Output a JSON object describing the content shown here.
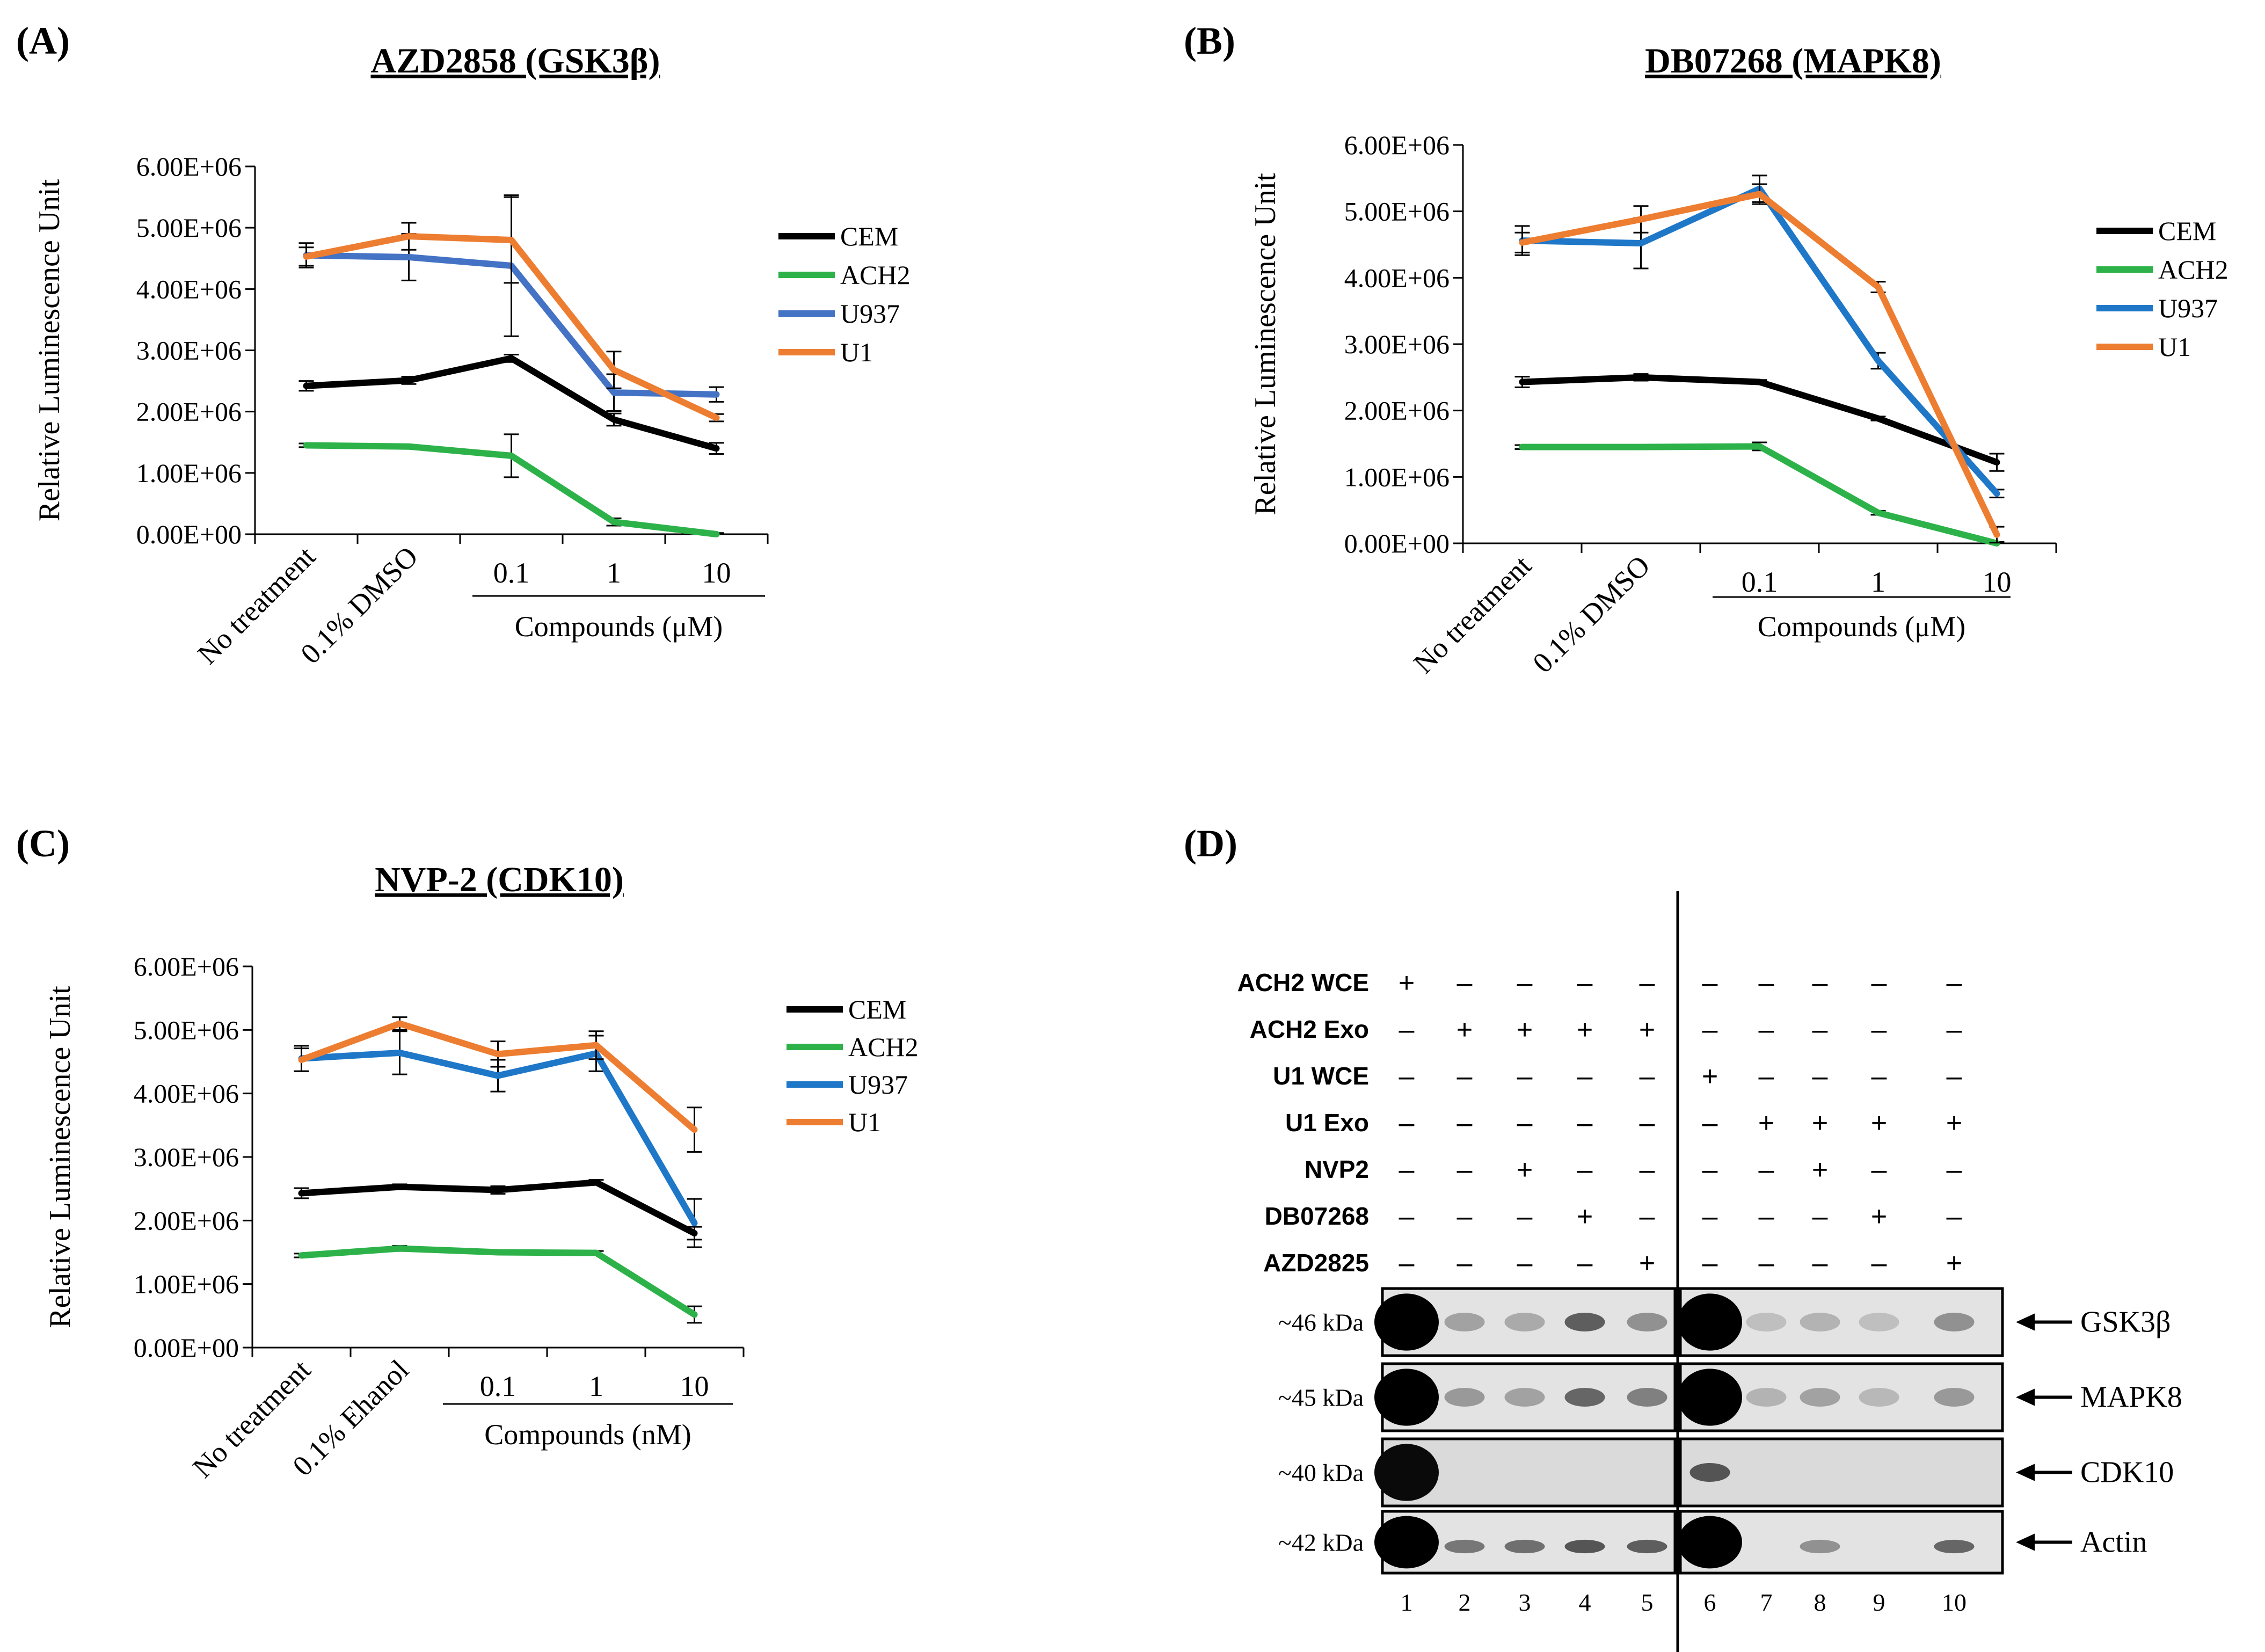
{
  "panels": {
    "A": {
      "label": "(A)",
      "title": "AZD2858 (GSK3β)"
    },
    "B": {
      "label": "(B)",
      "title": "DB07268 (MAPK8)"
    },
    "C": {
      "label": "(C)",
      "title": "NVP-2 (CDK10)"
    },
    "D": {
      "label": "(D)"
    }
  },
  "chart_data": [
    {
      "id": "A",
      "type": "line",
      "title": "AZD2858 (GSK3β)",
      "ylabel": "Relative Luminescence Unit",
      "xlabel": "Compounds (μM)",
      "categories": [
        "No treatment",
        "0.1% DMSO",
        "0.1",
        "1",
        "10"
      ],
      "ylim": [
        0,
        6000000
      ],
      "yticks": [
        "0.00E+00",
        "1.00E+06",
        "2.00E+06",
        "3.00E+06",
        "4.00E+06",
        "5.00E+06",
        "6.00E+06"
      ],
      "series": [
        {
          "name": "CEM",
          "color": "#000000",
          "values": [
            2420000,
            2510000,
            2870000,
            1870000,
            1400000
          ],
          "errors": [
            80000,
            60000,
            60000,
            100000,
            90000
          ]
        },
        {
          "name": "ACH2",
          "color": "#2db24a",
          "values": [
            1450000,
            1430000,
            1280000,
            200000,
            0
          ],
          "errors": [
            30000,
            20000,
            350000,
            60000,
            20000
          ]
        },
        {
          "name": "U937",
          "color": "#4472c4",
          "values": [
            4550000,
            4520000,
            4380000,
            2310000,
            2280000
          ],
          "errors": [
            200000,
            380000,
            1150000,
            300000,
            120000
          ]
        },
        {
          "name": "U1",
          "color": "#ed7d31",
          "values": [
            4530000,
            4860000,
            4800000,
            2680000,
            1900000
          ],
          "errors": [
            150000,
            220000,
            700000,
            300000,
            60000
          ]
        }
      ]
    },
    {
      "id": "B",
      "type": "line",
      "title": "DB07268 (MAPK8)",
      "ylabel": "Relative Luminescence Unit",
      "xlabel": "Compounds (μM)",
      "categories": [
        "No treatment",
        "0.1% DMSO",
        "0.1",
        "1",
        "10"
      ],
      "ylim": [
        0,
        6000000
      ],
      "yticks": [
        "0.00E+00",
        "1.00E+06",
        "2.00E+06",
        "3.00E+06",
        "4.00E+06",
        "5.00E+06",
        "6.00E+06"
      ],
      "series": [
        {
          "name": "CEM",
          "color": "#000000",
          "values": [
            2430000,
            2500000,
            2430000,
            1880000,
            1220000
          ],
          "errors": [
            80000,
            50000,
            30000,
            30000,
            130000
          ]
        },
        {
          "name": "ACH2",
          "color": "#2db24a",
          "values": [
            1450000,
            1450000,
            1460000,
            460000,
            0
          ],
          "errors": [
            30000,
            20000,
            60000,
            30000,
            20000
          ]
        },
        {
          "name": "U937",
          "color": "#1f77c8",
          "values": [
            4560000,
            4520000,
            5340000,
            2750000,
            750000
          ],
          "errors": [
            220000,
            380000,
            200000,
            120000,
            60000
          ]
        },
        {
          "name": "U1",
          "color": "#ed7d31",
          "values": [
            4530000,
            4880000,
            5260000,
            3860000,
            130000
          ],
          "errors": [
            150000,
            200000,
            150000,
            80000,
            120000
          ]
        }
      ]
    },
    {
      "id": "C",
      "type": "line",
      "title": "NVP-2 (CDK10)",
      "ylabel": "Relative Luminescence Unit",
      "xlabel": "Compounds (nM)",
      "categories": [
        "No treatment",
        "0.1% Ehanol",
        "0.1",
        "1",
        "10"
      ],
      "ylim": [
        0,
        6000000
      ],
      "yticks": [
        "0.00E+00",
        "1.00E+06",
        "2.00E+06",
        "3.00E+06",
        "4.00E+06",
        "5.00E+06",
        "6.00E+06"
      ],
      "series": [
        {
          "name": "CEM",
          "color": "#000000",
          "values": [
            2430000,
            2530000,
            2480000,
            2600000,
            1800000
          ],
          "errors": [
            80000,
            40000,
            60000,
            40000,
            100000
          ]
        },
        {
          "name": "ACH2",
          "color": "#2db24a",
          "values": [
            1450000,
            1560000,
            1500000,
            1490000,
            520000
          ],
          "errors": [
            30000,
            40000,
            30000,
            30000,
            130000
          ]
        },
        {
          "name": "U937",
          "color": "#1f77c8",
          "values": [
            4550000,
            4640000,
            4280000,
            4630000,
            1960000
          ],
          "errors": [
            200000,
            340000,
            250000,
            280000,
            380000
          ]
        },
        {
          "name": "U1",
          "color": "#ed7d31",
          "values": [
            4530000,
            5100000,
            4620000,
            4760000,
            3430000
          ],
          "errors": [
            180000,
            100000,
            200000,
            220000,
            350000
          ]
        }
      ]
    }
  ],
  "western": {
    "rows": [
      {
        "label": "ACH2 WCE",
        "marks": [
          "+",
          "–",
          "–",
          "–",
          "–",
          "–",
          "–",
          "–",
          "–",
          "–"
        ]
      },
      {
        "label": "ACH2 Exo",
        "marks": [
          "–",
          "+",
          "+",
          "+",
          "+",
          "–",
          "–",
          "–",
          "–",
          "–"
        ]
      },
      {
        "label": "U1 WCE",
        "marks": [
          "–",
          "–",
          "–",
          "–",
          "–",
          "+",
          "–",
          "–",
          "–",
          "–"
        ]
      },
      {
        "label": "U1 Exo",
        "marks": [
          "–",
          "–",
          "–",
          "–",
          "–",
          "–",
          "+",
          "+",
          "+",
          "+"
        ]
      },
      {
        "label": "NVP2",
        "marks": [
          "–",
          "–",
          "+",
          "–",
          "–",
          "–",
          "–",
          "+",
          "–",
          "–"
        ]
      },
      {
        "label": "DB07268",
        "marks": [
          "–",
          "–",
          "–",
          "+",
          "–",
          "–",
          "–",
          "–",
          "+",
          "–"
        ]
      },
      {
        "label": "AZD2825",
        "marks": [
          "–",
          "–",
          "–",
          "–",
          "+",
          "–",
          "–",
          "–",
          "–",
          "+"
        ]
      }
    ],
    "blots": [
      {
        "kda": "~46 kDa",
        "protein": "GSK3β",
        "intensities": [
          1.0,
          0.25,
          0.2,
          0.65,
          0.35,
          1.0,
          0.08,
          0.15,
          0.08,
          0.35
        ]
      },
      {
        "kda": "~45 kDa",
        "protein": "MAPK8",
        "intensities": [
          1.0,
          0.3,
          0.25,
          0.6,
          0.45,
          1.0,
          0.15,
          0.25,
          0.12,
          0.3
        ]
      },
      {
        "kda": "~40 kDa",
        "protein": "CDK10",
        "intensities": [
          0.95,
          0,
          0,
          0,
          0,
          0.7,
          0,
          0,
          0,
          0
        ]
      },
      {
        "kda": "~42 kDa",
        "protein": "Actin",
        "intensities": [
          1.0,
          0.5,
          0.55,
          0.7,
          0.65,
          1.0,
          0,
          0.35,
          0,
          0.6
        ]
      }
    ],
    "lanes": [
      "1",
      "2",
      "3",
      "4",
      "5",
      "6",
      "7",
      "8",
      "9",
      "10"
    ]
  }
}
